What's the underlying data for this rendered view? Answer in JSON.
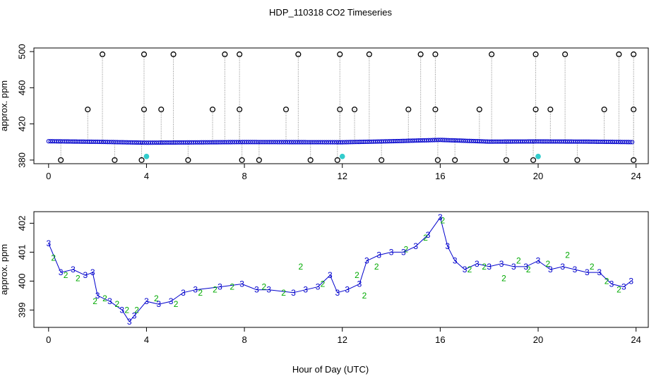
{
  "title": "HDP_110318  CO2 Timeseries",
  "xlabel": "Hour of Day (UTC)",
  "colors": {
    "axis": "#000000",
    "blue": "#0000cc",
    "green": "#00aa00",
    "cyan": "#33cccc",
    "grey": "#888888"
  },
  "chart_data": [
    {
      "type": "scatter",
      "name": "top-panel",
      "ylabel": "approx. ppm",
      "xlim": [
        -0.6,
        24.5
      ],
      "ylim": [
        376,
        504
      ],
      "x_ticks": [
        0,
        4,
        8,
        12,
        16,
        20,
        24
      ],
      "y_ticks": [
        380,
        420,
        460,
        500
      ],
      "series": [
        {
          "name": "black-outliers-high",
          "x": [
            1.6,
            2.2,
            3.9,
            4.6,
            5.1,
            6.7,
            7.2,
            7.8,
            9.7,
            10.2,
            11.9,
            12.5,
            13.1,
            14.7,
            15.2,
            15.8,
            17.6,
            18.1,
            19.9,
            20.5,
            21.1,
            22.7,
            23.3,
            23.9
          ],
          "y": [
            436,
            497,
            497,
            436,
            497,
            436,
            497,
            497,
            436,
            497,
            497,
            436,
            497,
            436,
            497,
            497,
            436,
            497,
            497,
            436,
            497,
            436,
            497,
            497
          ]
        },
        {
          "name": "black-outliers-mid",
          "x": [
            3.9,
            7.8,
            11.9,
            15.8,
            19.9,
            23.9
          ],
          "y": [
            436,
            436,
            436,
            436,
            436,
            436
          ]
        },
        {
          "name": "black-outliers-low",
          "x": [
            0.5,
            2.7,
            3.8,
            5.7,
            7.9,
            8.6,
            10.7,
            11.8,
            13.6,
            15.9,
            16.6,
            18.7,
            19.8,
            21.6,
            23.9
          ],
          "y": [
            380,
            380,
            380,
            380,
            380,
            380,
            380,
            380,
            380,
            380,
            380,
            380,
            380,
            380,
            380
          ]
        },
        {
          "name": "cyan-points",
          "x": [
            4.0,
            12.0,
            20.0
          ],
          "y": [
            384,
            384,
            384
          ]
        }
      ],
      "baseline": {
        "name": "blue-trace",
        "x": [
          0,
          2,
          4,
          8,
          12,
          14,
          16,
          18,
          20,
          22,
          24
        ],
        "y": [
          400.8,
          400.2,
          399.2,
          399.9,
          399.7,
          400.8,
          402.3,
          400.4,
          400.6,
          400.4,
          399.8
        ]
      }
    },
    {
      "type": "scatter",
      "name": "bottom-panel",
      "ylabel": "approx. ppm",
      "xlim": [
        -0.6,
        24.5
      ],
      "ylim": [
        398.4,
        402.4
      ],
      "x_ticks": [
        0,
        4,
        8,
        12,
        16,
        20,
        24
      ],
      "y_ticks": [
        399,
        400,
        401,
        402
      ],
      "series": [
        {
          "name": "series-3",
          "marker": "3",
          "x": [
            0.0,
            0.5,
            1.0,
            1.5,
            1.8,
            2.0,
            2.5,
            3.0,
            3.3,
            3.5,
            4.0,
            4.5,
            5.0,
            5.5,
            6.0,
            7.0,
            7.9,
            8.5,
            9.0,
            10.0,
            10.5,
            11.0,
            11.5,
            11.8,
            12.2,
            12.7,
            13.0,
            13.5,
            14.0,
            14.5,
            15.0,
            15.5,
            16.0,
            16.3,
            16.6,
            17.0,
            17.5,
            18.0,
            18.5,
            19.0,
            19.5,
            20.0,
            20.5,
            21.0,
            21.5,
            22.0,
            22.5,
            23.0,
            23.5,
            23.8
          ],
          "y": [
            401.3,
            400.3,
            400.4,
            400.2,
            400.3,
            399.5,
            399.3,
            399.0,
            398.6,
            398.8,
            399.3,
            399.2,
            399.3,
            399.6,
            399.7,
            399.8,
            399.9,
            399.7,
            399.7,
            399.6,
            399.7,
            399.8,
            400.2,
            399.6,
            399.7,
            399.9,
            400.7,
            400.9,
            401.0,
            401.0,
            401.2,
            401.6,
            402.2,
            401.2,
            400.7,
            400.4,
            400.6,
            400.5,
            400.6,
            400.5,
            400.5,
            400.7,
            400.4,
            400.5,
            400.4,
            400.3,
            400.3,
            399.9,
            399.8,
            400.0
          ]
        },
        {
          "name": "series-2",
          "marker": "2",
          "x": [
            0.2,
            0.7,
            1.2,
            1.9,
            2.3,
            2.8,
            3.2,
            3.6,
            4.4,
            5.2,
            6.2,
            6.8,
            7.5,
            8.8,
            9.6,
            10.3,
            11.2,
            12.6,
            12.9,
            13.4,
            14.6,
            15.4,
            16.1,
            17.2,
            17.8,
            18.6,
            19.2,
            19.6,
            20.4,
            21.2,
            22.2,
            22.8,
            23.3
          ],
          "y": [
            400.8,
            400.2,
            400.1,
            399.3,
            399.4,
            399.2,
            399.0,
            399.0,
            399.4,
            399.2,
            399.6,
            399.7,
            399.8,
            399.8,
            399.6,
            400.5,
            399.9,
            400.2,
            399.5,
            400.5,
            401.1,
            401.5,
            402.1,
            400.4,
            400.5,
            400.1,
            400.7,
            400.4,
            400.6,
            400.9,
            400.5,
            400.0,
            399.7
          ]
        }
      ]
    }
  ]
}
